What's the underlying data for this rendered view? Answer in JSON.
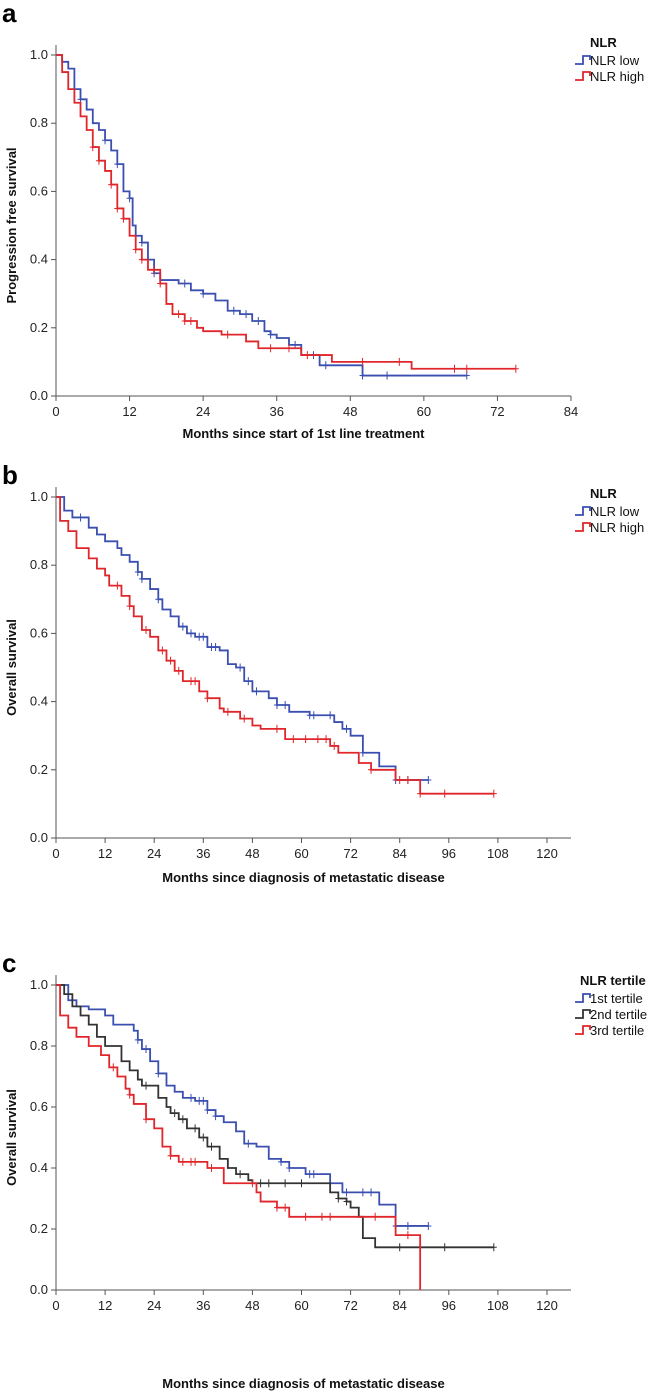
{
  "chart_data": [
    {
      "type": "line",
      "panel_label": "a",
      "xlabel": "Months since start of 1st line treatment",
      "ylabel": "Progression free survival",
      "xlim": [
        0,
        84
      ],
      "ylim": [
        0,
        1.0
      ],
      "xticks": [
        "0",
        "12",
        "24",
        "36",
        "48",
        "60",
        "72",
        "84"
      ],
      "yticks": [
        "0.0",
        "0.2",
        "0.4",
        "0.6",
        "0.8",
        "1.0"
      ],
      "legend_title": "NLR",
      "legend_position": "top-right",
      "series": [
        {
          "name": "NLR low",
          "color": "#3a4fb0",
          "steps": [
            [
              0,
              1
            ],
            [
              1,
              0.98
            ],
            [
              2,
              0.96
            ],
            [
              3,
              0.9
            ],
            [
              4,
              0.87
            ],
            [
              5,
              0.84
            ],
            [
              6,
              0.8
            ],
            [
              7,
              0.78
            ],
            [
              8,
              0.75
            ],
            [
              9,
              0.72
            ],
            [
              10,
              0.68
            ],
            [
              11,
              0.6
            ],
            [
              12,
              0.58
            ],
            [
              12.5,
              0.5
            ],
            [
              13,
              0.47
            ],
            [
              14,
              0.45
            ],
            [
              15,
              0.4
            ],
            [
              16,
              0.36
            ],
            [
              17,
              0.34
            ],
            [
              20,
              0.33
            ],
            [
              22,
              0.31
            ],
            [
              24,
              0.3
            ],
            [
              26,
              0.28
            ],
            [
              28,
              0.25
            ],
            [
              30,
              0.24
            ],
            [
              32,
              0.22
            ],
            [
              34,
              0.19
            ],
            [
              35,
              0.18
            ],
            [
              36,
              0.17
            ],
            [
              38,
              0.15
            ],
            [
              40,
              0.12
            ],
            [
              43,
              0.09
            ],
            [
              50,
              0.06
            ]
          ],
          "end": 67,
          "censored": [
            4,
            8,
            10,
            12,
            13,
            14,
            16,
            21,
            24,
            29,
            31,
            33,
            35,
            39,
            42,
            44,
            50,
            54,
            67
          ]
        },
        {
          "name": "NLR high",
          "color": "#e0262a",
          "steps": [
            [
              0,
              1
            ],
            [
              1,
              0.95
            ],
            [
              2,
              0.9
            ],
            [
              3,
              0.86
            ],
            [
              4,
              0.82
            ],
            [
              5,
              0.78
            ],
            [
              6,
              0.73
            ],
            [
              7,
              0.69
            ],
            [
              8,
              0.66
            ],
            [
              9,
              0.62
            ],
            [
              10,
              0.55
            ],
            [
              11,
              0.52
            ],
            [
              12,
              0.47
            ],
            [
              13,
              0.43
            ],
            [
              14,
              0.4
            ],
            [
              15,
              0.37
            ],
            [
              17,
              0.33
            ],
            [
              18,
              0.27
            ],
            [
              19,
              0.24
            ],
            [
              21,
              0.22
            ],
            [
              23,
              0.2
            ],
            [
              24,
              0.19
            ],
            [
              27,
              0.18
            ],
            [
              31,
              0.16
            ],
            [
              33,
              0.14
            ],
            [
              40,
              0.12
            ],
            [
              45,
              0.1
            ],
            [
              58,
              0.08
            ]
          ],
          "end": 75,
          "censored": [
            6,
            7,
            9,
            10,
            11,
            13,
            14,
            16,
            17,
            20,
            21,
            22,
            28,
            35,
            38,
            41,
            50,
            56,
            65,
            67,
            75
          ]
        }
      ]
    },
    {
      "type": "line",
      "panel_label": "b",
      "xlabel": "Months since diagnosis of metastatic disease",
      "ylabel": "Overall survival",
      "xlim": [
        0,
        120
      ],
      "ylim": [
        0,
        1.0
      ],
      "xticks": [
        "0",
        "12",
        "24",
        "36",
        "48",
        "60",
        "72",
        "84",
        "96",
        "108",
        "120"
      ],
      "yticks": [
        "0.0",
        "0.2",
        "0.4",
        "0.6",
        "0.8",
        "1.0"
      ],
      "legend_title": "NLR",
      "legend_position": "top-right",
      "series": [
        {
          "name": "NLR low",
          "color": "#3a4fb0",
          "steps": [
            [
              0,
              1
            ],
            [
              2,
              0.96
            ],
            [
              4,
              0.94
            ],
            [
              8,
              0.91
            ],
            [
              10,
              0.89
            ],
            [
              12,
              0.87
            ],
            [
              15,
              0.85
            ],
            [
              16,
              0.83
            ],
            [
              18,
              0.81
            ],
            [
              20,
              0.78
            ],
            [
              21,
              0.76
            ],
            [
              23,
              0.73
            ],
            [
              25,
              0.7
            ],
            [
              26,
              0.67
            ],
            [
              28,
              0.65
            ],
            [
              30,
              0.62
            ],
            [
              32,
              0.6
            ],
            [
              34,
              0.59
            ],
            [
              37,
              0.56
            ],
            [
              40,
              0.55
            ],
            [
              42,
              0.51
            ],
            [
              44,
              0.5
            ],
            [
              46,
              0.46
            ],
            [
              48,
              0.43
            ],
            [
              52,
              0.41
            ],
            [
              54,
              0.39
            ],
            [
              57,
              0.37
            ],
            [
              62,
              0.36
            ],
            [
              68,
              0.34
            ],
            [
              70,
              0.32
            ],
            [
              72,
              0.3
            ],
            [
              75,
              0.25
            ],
            [
              79,
              0.21
            ],
            [
              83,
              0.17
            ]
          ],
          "end": 91,
          "censored": [
            6,
            20,
            21,
            25,
            31,
            33,
            35,
            36,
            38,
            39,
            45,
            47,
            49,
            54,
            56,
            62,
            63,
            67,
            71,
            75,
            83,
            86,
            91
          ]
        },
        {
          "name": "NLR high",
          "color": "#e0262a",
          "steps": [
            [
              0,
              1
            ],
            [
              1,
              0.93
            ],
            [
              3,
              0.9
            ],
            [
              5,
              0.85
            ],
            [
              8,
              0.82
            ],
            [
              10,
              0.79
            ],
            [
              12,
              0.77
            ],
            [
              13,
              0.74
            ],
            [
              16,
              0.71
            ],
            [
              18,
              0.68
            ],
            [
              19,
              0.65
            ],
            [
              21,
              0.61
            ],
            [
              23,
              0.59
            ],
            [
              25,
              0.55
            ],
            [
              27,
              0.52
            ],
            [
              29,
              0.49
            ],
            [
              31,
              0.46
            ],
            [
              35,
              0.43
            ],
            [
              37,
              0.41
            ],
            [
              40,
              0.38
            ],
            [
              41,
              0.37
            ],
            [
              45,
              0.35
            ],
            [
              48,
              0.33
            ],
            [
              50,
              0.32
            ],
            [
              56,
              0.29
            ],
            [
              67,
              0.27
            ],
            [
              69,
              0.25
            ],
            [
              74,
              0.22
            ],
            [
              77,
              0.2
            ],
            [
              83,
              0.17
            ],
            [
              89,
              0.13
            ]
          ],
          "end": 107,
          "censored": [
            15,
            18,
            22,
            26,
            28,
            30,
            33,
            34,
            37,
            42,
            46,
            54,
            58,
            61,
            64,
            66,
            68,
            77,
            84,
            86,
            89,
            95,
            107
          ]
        }
      ]
    },
    {
      "type": "line",
      "panel_label": "c",
      "xlabel": "Months since  diagnosis of metastatic disease",
      "ylabel": "Overall survival",
      "xlim": [
        0,
        120
      ],
      "ylim": [
        0,
        1.0
      ],
      "xticks": [
        "0",
        "12",
        "24",
        "36",
        "48",
        "60",
        "72",
        "84",
        "96",
        "108",
        "120"
      ],
      "yticks": [
        "0.0",
        "0.2",
        "0.4",
        "0.6",
        "0.8",
        "1.0"
      ],
      "legend_title": "NLR tertile",
      "legend_position": "top-right",
      "series": [
        {
          "name": "1st tertile",
          "color": "#3a4fb0",
          "steps": [
            [
              0,
              1
            ],
            [
              3,
              0.95
            ],
            [
              5,
              0.93
            ],
            [
              8,
              0.92
            ],
            [
              12,
              0.9
            ],
            [
              14,
              0.87
            ],
            [
              19,
              0.85
            ],
            [
              20,
              0.82
            ],
            [
              21,
              0.79
            ],
            [
              23,
              0.75
            ],
            [
              25,
              0.71
            ],
            [
              27,
              0.67
            ],
            [
              29,
              0.65
            ],
            [
              31,
              0.63
            ],
            [
              34,
              0.62
            ],
            [
              37,
              0.59
            ],
            [
              39,
              0.57
            ],
            [
              41,
              0.55
            ],
            [
              44,
              0.52
            ],
            [
              46,
              0.48
            ],
            [
              49,
              0.47
            ],
            [
              52,
              0.43
            ],
            [
              55,
              0.42
            ],
            [
              57,
              0.4
            ],
            [
              61,
              0.38
            ],
            [
              67,
              0.35
            ],
            [
              70,
              0.32
            ],
            [
              79,
              0.28
            ],
            [
              83,
              0.21
            ]
          ],
          "end": 91,
          "censored": [
            20,
            22,
            25,
            33,
            35,
            36,
            37,
            39,
            47,
            55,
            57,
            62,
            63,
            71,
            75,
            77,
            83,
            86,
            91
          ]
        },
        {
          "name": "2nd tertile",
          "color": "#333333",
          "steps": [
            [
              0,
              1
            ],
            [
              2,
              0.97
            ],
            [
              4,
              0.93
            ],
            [
              6,
              0.9
            ],
            [
              8,
              0.87
            ],
            [
              10,
              0.83
            ],
            [
              12,
              0.8
            ],
            [
              16,
              0.75
            ],
            [
              18,
              0.72
            ],
            [
              20,
              0.69
            ],
            [
              21,
              0.67
            ],
            [
              25,
              0.63
            ],
            [
              27,
              0.6
            ],
            [
              28,
              0.58
            ],
            [
              30,
              0.56
            ],
            [
              32,
              0.53
            ],
            [
              35,
              0.5
            ],
            [
              37,
              0.47
            ],
            [
              40,
              0.43
            ],
            [
              42,
              0.4
            ],
            [
              44,
              0.38
            ],
            [
              47,
              0.36
            ],
            [
              48,
              0.35
            ],
            [
              67,
              0.32
            ],
            [
              69,
              0.3
            ],
            [
              71,
              0.29
            ],
            [
              72,
              0.27
            ],
            [
              74,
              0.24
            ],
            [
              75,
              0.17
            ],
            [
              78,
              0.14
            ]
          ],
          "end": 107,
          "censored": [
            22,
            29,
            31,
            34,
            36,
            38,
            45,
            50,
            52,
            56,
            60,
            69,
            71,
            84,
            95,
            107
          ]
        },
        {
          "name": "3rd tertile",
          "color": "#e0262a",
          "steps": [
            [
              0,
              1
            ],
            [
              1,
              0.9
            ],
            [
              3,
              0.86
            ],
            [
              5,
              0.83
            ],
            [
              8,
              0.8
            ],
            [
              11,
              0.77
            ],
            [
              13,
              0.73
            ],
            [
              15,
              0.7
            ],
            [
              17,
              0.66
            ],
            [
              18,
              0.64
            ],
            [
              19,
              0.61
            ],
            [
              22,
              0.56
            ],
            [
              24,
              0.53
            ],
            [
              26,
              0.47
            ],
            [
              28,
              0.44
            ],
            [
              30,
              0.42
            ],
            [
              37,
              0.4
            ],
            [
              41,
              0.35
            ],
            [
              49,
              0.32
            ],
            [
              50,
              0.29
            ],
            [
              54,
              0.27
            ],
            [
              57,
              0.24
            ],
            [
              83,
              0.18
            ],
            [
              89,
              0.0
            ]
          ],
          "end": 89,
          "censored": [
            14,
            18,
            22,
            28,
            31,
            33,
            34,
            38,
            48,
            54,
            56,
            61,
            65,
            67,
            78,
            86
          ]
        }
      ]
    }
  ]
}
